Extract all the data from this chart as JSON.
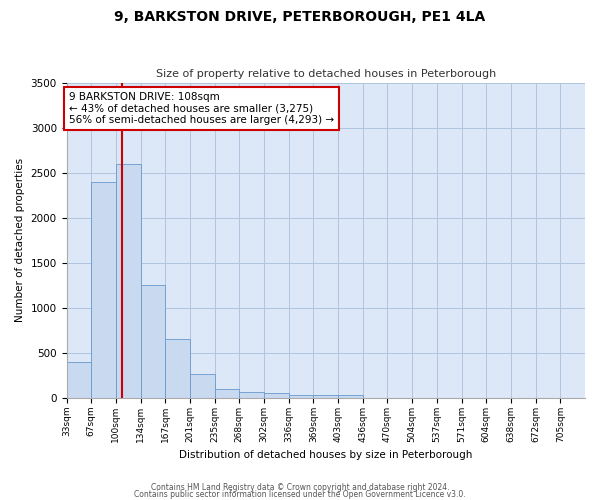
{
  "title": "9, BARKSTON DRIVE, PETERBOROUGH, PE1 4LA",
  "subtitle": "Size of property relative to detached houses in Peterborough",
  "bar_values": [
    400,
    2400,
    2600,
    1250,
    650,
    260,
    100,
    60,
    50,
    35,
    30,
    30,
    0,
    0,
    0,
    0,
    0,
    0,
    0,
    0,
    0
  ],
  "all_categories": [
    "33sqm",
    "67sqm",
    "100sqm",
    "134sqm",
    "167sqm",
    "201sqm",
    "235sqm",
    "268sqm",
    "302sqm",
    "336sqm",
    "369sqm",
    "403sqm",
    "436sqm",
    "470sqm",
    "504sqm",
    "537sqm",
    "571sqm",
    "604sqm",
    "638sqm",
    "672sqm",
    "705sqm"
  ],
  "bar_color": "#c8d9f0",
  "bar_edge_color": "#6699cc",
  "grid_color": "#b0c4de",
  "background_color": "#dce8f8",
  "vline_color": "#cc0000",
  "ylim": [
    0,
    3500
  ],
  "ylabel": "Number of detached properties",
  "xlabel": "Distribution of detached houses by size in Peterborough",
  "annotation_title": "9 BARKSTON DRIVE: 108sqm",
  "annotation_line1": "← 43% of detached houses are smaller (3,275)",
  "annotation_line2": "56% of semi-detached houses are larger (4,293) →",
  "annotation_box_color": "#ffffff",
  "annotation_box_edge": "#cc0000",
  "footer_line1": "Contains HM Land Registry data © Crown copyright and database right 2024.",
  "footer_line2": "Contains public sector information licensed under the Open Government Licence v3.0."
}
